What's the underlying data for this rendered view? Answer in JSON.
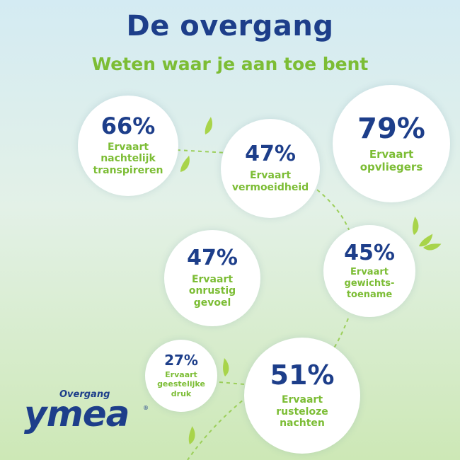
{
  "header": {
    "title": "De overgang",
    "subtitle": "Weten waar je aan toe bent"
  },
  "stats": [
    {
      "id": "nachtelijk-transpireren",
      "percent": "66%",
      "lines": [
        "Ervaart",
        "nachtelijk",
        "transpireren"
      ]
    },
    {
      "id": "vermoeidheid",
      "percent": "47%",
      "lines": [
        "Ervaart",
        "vermoeidheid"
      ]
    },
    {
      "id": "opvliegers",
      "percent": "79%",
      "lines": [
        "Ervaart",
        "opvliegers"
      ]
    },
    {
      "id": "onrustig-gevoel",
      "percent": "47%",
      "lines": [
        "Ervaart",
        "onrustig",
        "gevoel"
      ]
    },
    {
      "id": "gewichtstoename",
      "percent": "45%",
      "lines": [
        "Ervaart",
        "gewichts-",
        "toename"
      ]
    },
    {
      "id": "geestelijke-druk",
      "percent": "27%",
      "lines": [
        "Ervaart",
        "geestelijke",
        "druk"
      ]
    },
    {
      "id": "rusteloze-nachten",
      "percent": "51%",
      "lines": [
        "Ervaart",
        "rusteloze",
        "nachten"
      ]
    }
  ],
  "logo": {
    "small_text": "Overgang",
    "brand": "ymea",
    "registered": "®"
  },
  "colors": {
    "brand_blue": "#1d3e8a",
    "brand_green": "#7cbd35",
    "leaf_green": "#a8d44a",
    "dash_green": "#9ccf5a"
  },
  "icons": [
    "leaf-icon"
  ]
}
